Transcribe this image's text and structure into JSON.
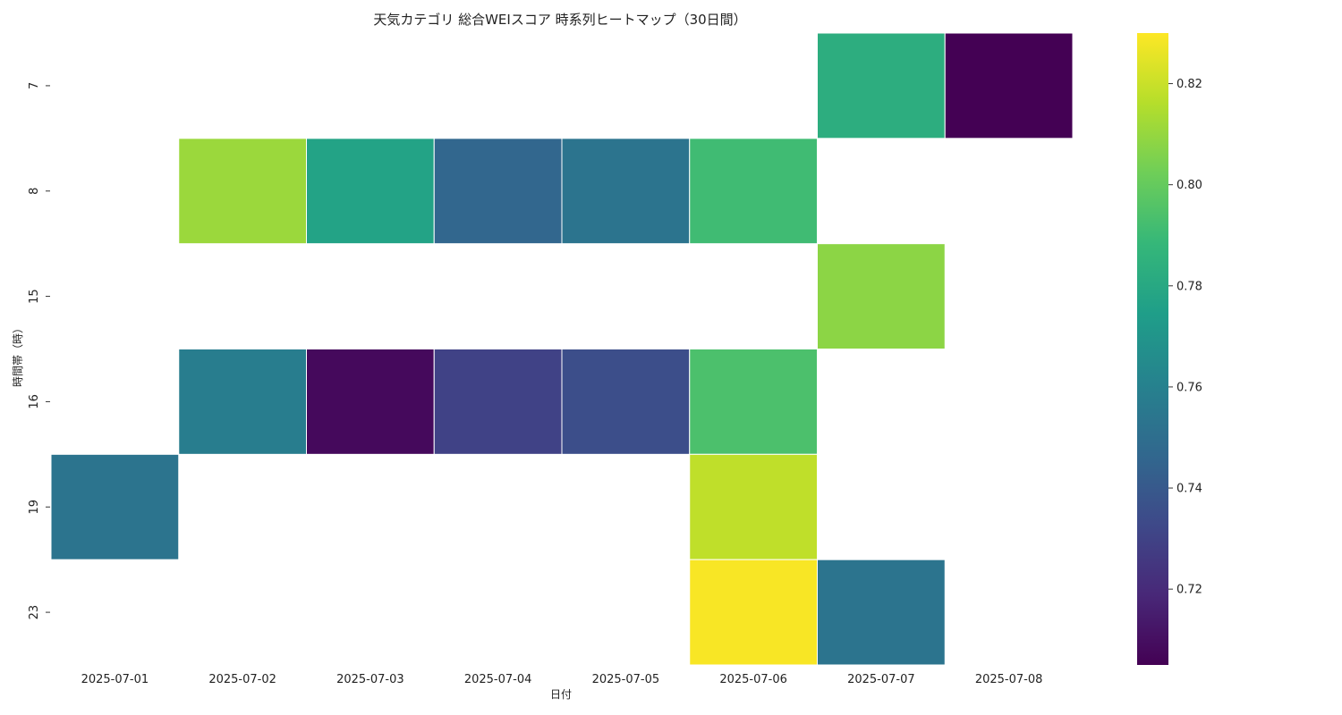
{
  "chart_data": {
    "type": "heatmap",
    "title": "天気カテゴリ 総合WEIスコア 時系列ヒートマップ（30日間）",
    "xlabel": "日付",
    "ylabel": "時間帯（時）",
    "x_categories": [
      "2025-07-01",
      "2025-07-02",
      "2025-07-03",
      "2025-07-04",
      "2025-07-05",
      "2025-07-06",
      "2025-07-07",
      "2025-07-08"
    ],
    "y_categories": [
      "7",
      "8",
      "15",
      "16",
      "19",
      "23"
    ],
    "cells": [
      {
        "x": "2025-07-07",
        "y": "7",
        "value": 0.783
      },
      {
        "x": "2025-07-08",
        "y": "7",
        "value": 0.705
      },
      {
        "x": "2025-07-02",
        "y": "8",
        "value": 0.811
      },
      {
        "x": "2025-07-03",
        "y": "8",
        "value": 0.777
      },
      {
        "x": "2025-07-04",
        "y": "8",
        "value": 0.746
      },
      {
        "x": "2025-07-05",
        "y": "8",
        "value": 0.753
      },
      {
        "x": "2025-07-06",
        "y": "8",
        "value": 0.791
      },
      {
        "x": "2025-07-07",
        "y": "15",
        "value": 0.808
      },
      {
        "x": "2025-07-02",
        "y": "16",
        "value": 0.758
      },
      {
        "x": "2025-07-03",
        "y": "16",
        "value": 0.708
      },
      {
        "x": "2025-07-04",
        "y": "16",
        "value": 0.73
      },
      {
        "x": "2025-07-05",
        "y": "16",
        "value": 0.735
      },
      {
        "x": "2025-07-06",
        "y": "16",
        "value": 0.794
      },
      {
        "x": "2025-07-01",
        "y": "19",
        "value": 0.753
      },
      {
        "x": "2025-07-06",
        "y": "19",
        "value": 0.818
      },
      {
        "x": "2025-07-06",
        "y": "23",
        "value": 0.829
      },
      {
        "x": "2025-07-07",
        "y": "23",
        "value": 0.753
      }
    ],
    "colorbar": {
      "colormap": "viridis",
      "range": [
        0.705,
        0.83
      ],
      "ticks": [
        0.72,
        0.74,
        0.76,
        0.78,
        0.8,
        0.82
      ],
      "tick_labels": [
        "0.72",
        "0.74",
        "0.76",
        "0.78",
        "0.80",
        "0.82"
      ]
    },
    "missing_color": "#ffffff",
    "grid": false
  }
}
